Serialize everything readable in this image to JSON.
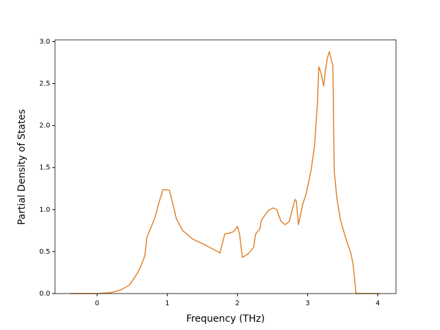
{
  "chart_data": {
    "type": "line",
    "xlabel": "Frequency (THz)",
    "ylabel": "Partial Density of States",
    "x": [
      -0.38,
      0,
      0.19,
      0.33,
      0.46,
      0.58,
      0.63,
      0.68,
      0.71,
      0.77,
      0.83,
      0.87,
      0.94,
      1.03,
      1.07,
      1.13,
      1.22,
      1.36,
      1.56,
      1.74,
      1.75,
      1.82,
      1.89,
      1.95,
      2.0,
      2.03,
      2.07,
      2.15,
      2.23,
      2.26,
      2.32,
      2.34,
      2.44,
      2.51,
      2.56,
      2.62,
      2.68,
      2.74,
      2.77,
      2.82,
      2.84,
      2.87,
      2.93,
      2.98,
      3.05,
      3.1,
      3.14,
      3.16,
      3.19,
      3.23,
      3.25,
      3.28,
      3.31,
      3.35,
      3.36,
      3.38,
      3.42,
      3.47,
      3.54,
      3.62,
      3.65,
      3.69,
      4.01,
      4.03
    ],
    "series": [
      {
        "color": "#e1812c",
        "values": [
          0,
          0,
          0.01,
          0.04,
          0.1,
          0.25,
          0.34,
          0.45,
          0.67,
          0.79,
          0.92,
          1.05,
          1.24,
          1.23,
          1.1,
          0.89,
          0.75,
          0.65,
          0.57,
          0.49,
          0.48,
          0.71,
          0.72,
          0.74,
          0.8,
          0.71,
          0.43,
          0.47,
          0.55,
          0.71,
          0.77,
          0.87,
          0.99,
          1.02,
          1.0,
          0.86,
          0.82,
          0.86,
          0.96,
          1.12,
          1.1,
          0.82,
          1.06,
          1.19,
          1.47,
          1.77,
          2.26,
          2.7,
          2.63,
          2.47,
          2.63,
          2.8,
          2.88,
          2.74,
          2.72,
          1.45,
          1.12,
          0.87,
          0.67,
          0.47,
          0.34,
          0,
          0,
          0
        ]
      }
    ],
    "xlim": [
      -0.6,
      4.26
    ],
    "ylim": [
      0,
      3.02
    ],
    "xticks": [
      0,
      1,
      2,
      3,
      4
    ],
    "yticks": [
      {
        "value": 0,
        "label": "0.0"
      },
      {
        "value": 0.5,
        "label": "0.5"
      },
      {
        "value": 1,
        "label": "1.0"
      },
      {
        "value": 1.5,
        "label": "1.5"
      },
      {
        "value": 2,
        "label": "2.0"
      },
      {
        "value": 2.5,
        "label": "2.5"
      },
      {
        "value": 3,
        "label": "3.0"
      }
    ]
  }
}
